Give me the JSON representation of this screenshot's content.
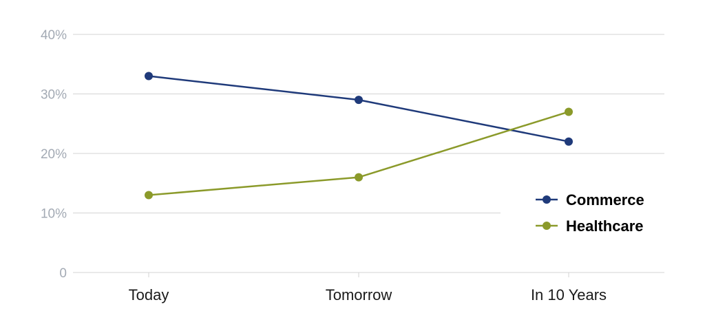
{
  "chart_data": {
    "type": "line",
    "categories": [
      "Today",
      "Tomorrow",
      "In 10 Years"
    ],
    "series": [
      {
        "name": "Commerce",
        "values": [
          33,
          29,
          22
        ],
        "color": "#1f3a7a"
      },
      {
        "name": "Healthcare",
        "values": [
          13,
          16,
          27
        ],
        "color": "#8b9a2a"
      }
    ],
    "y_ticks": [
      "0",
      "10%",
      "20%",
      "30%",
      "40%"
    ],
    "ylim": [
      0,
      40
    ],
    "grid": true,
    "legend_position": "right",
    "colors": {
      "grid": "#d3d3d3",
      "tick_text": "#a3aab4"
    }
  }
}
